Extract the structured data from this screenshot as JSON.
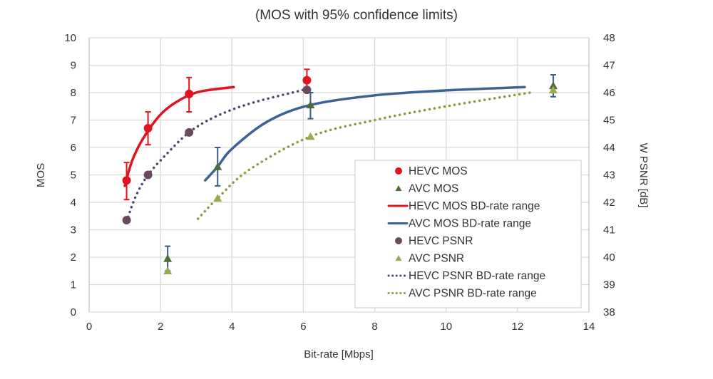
{
  "chart_data": {
    "type": "scatter",
    "title": "(MOS with 95% confidence limits)",
    "xlabel": "Bit-rate [Mbps]",
    "ylabel": "MOS",
    "y2label": "W PSNR [dB]",
    "xlim": [
      0,
      14
    ],
    "ylim": [
      0,
      10
    ],
    "y2lim": [
      38,
      48
    ],
    "xticks": [
      "0",
      "2",
      "4",
      "6",
      "8",
      "10",
      "12",
      "14"
    ],
    "yticks": [
      "0",
      "1",
      "2",
      "3",
      "4",
      "5",
      "6",
      "7",
      "8",
      "9",
      "10"
    ],
    "y2ticks": [
      "38",
      "39",
      "40",
      "41",
      "42",
      "43",
      "44",
      "45",
      "46",
      "47",
      "48"
    ],
    "grid": true,
    "legend_position": "bottom-right",
    "series": [
      {
        "name": "HEVC MOS",
        "kind": "marker",
        "marker": "circle",
        "axis": "left",
        "color": "#e0141e",
        "points": [
          {
            "x": 1.05,
            "y": 4.8,
            "lo": 4.1,
            "hi": 5.45
          },
          {
            "x": 1.65,
            "y": 6.7,
            "lo": 6.1,
            "hi": 7.3
          },
          {
            "x": 2.8,
            "y": 7.95,
            "lo": 7.3,
            "hi": 8.55
          },
          {
            "x": 6.1,
            "y": 8.45,
            "lo": 8.0,
            "hi": 8.85
          }
        ]
      },
      {
        "name": "AVC MOS",
        "kind": "marker",
        "marker": "triangle",
        "axis": "left",
        "color": "#4f6b3a",
        "errcolor": "#3d5a80",
        "points": [
          {
            "x": 2.2,
            "y": 1.95,
            "lo": 1.5,
            "hi": 2.4
          },
          {
            "x": 3.6,
            "y": 5.3,
            "lo": 4.6,
            "hi": 6.0
          },
          {
            "x": 6.2,
            "y": 7.55,
            "lo": 7.05,
            "hi": 8.0
          },
          {
            "x": 13.0,
            "y": 8.25,
            "lo": 7.85,
            "hi": 8.65
          }
        ]
      },
      {
        "name": "HEVC MOS BD-rate range",
        "kind": "line",
        "axis": "left",
        "color": "#e0141e",
        "dash": "solid",
        "points": [
          {
            "x": 1.0,
            "y": 4.6
          },
          {
            "x": 1.2,
            "y": 5.5
          },
          {
            "x": 1.5,
            "y": 6.3
          },
          {
            "x": 2.0,
            "y": 7.2
          },
          {
            "x": 2.5,
            "y": 7.7
          },
          {
            "x": 3.0,
            "y": 8.0
          },
          {
            "x": 3.5,
            "y": 8.12
          },
          {
            "x": 4.05,
            "y": 8.2
          }
        ]
      },
      {
        "name": "AVC MOS BD-rate range",
        "kind": "line",
        "axis": "left",
        "color": "#3d6391",
        "dash": "solid",
        "points": [
          {
            "x": 3.25,
            "y": 4.8
          },
          {
            "x": 3.6,
            "y": 5.3
          },
          {
            "x": 4.0,
            "y": 5.95
          },
          {
            "x": 5.0,
            "y": 6.95
          },
          {
            "x": 6.2,
            "y": 7.55
          },
          {
            "x": 8.0,
            "y": 7.9
          },
          {
            "x": 10.0,
            "y": 8.08
          },
          {
            "x": 12.2,
            "y": 8.2
          }
        ]
      },
      {
        "name": "HEVC PSNR",
        "kind": "marker",
        "marker": "circle",
        "axis": "right",
        "color": "#6b4a5e",
        "points": [
          {
            "x": 1.05,
            "y": 41.35
          },
          {
            "x": 1.65,
            "y": 43.0
          },
          {
            "x": 2.8,
            "y": 44.55
          },
          {
            "x": 6.1,
            "y": 46.1
          }
        ]
      },
      {
        "name": "AVC PSNR",
        "kind": "marker",
        "marker": "triangle",
        "axis": "right",
        "color": "#9aaa4e",
        "points": [
          {
            "x": 2.2,
            "y": 39.5
          },
          {
            "x": 3.6,
            "y": 42.15
          },
          {
            "x": 6.2,
            "y": 44.4
          },
          {
            "x": 13.0,
            "y": 46.1
          }
        ]
      },
      {
        "name": "HEVC PSNR BD-rate range",
        "kind": "line",
        "axis": "right",
        "color": "#4a4a6e",
        "dash": "dotted",
        "points": [
          {
            "x": 1.05,
            "y": 41.3
          },
          {
            "x": 1.3,
            "y": 42.2
          },
          {
            "x": 1.65,
            "y": 43.0
          },
          {
            "x": 2.2,
            "y": 43.8
          },
          {
            "x": 2.8,
            "y": 44.55
          },
          {
            "x": 3.5,
            "y": 45.1
          },
          {
            "x": 4.5,
            "y": 45.6
          },
          {
            "x": 6.0,
            "y": 46.1
          }
        ]
      },
      {
        "name": "AVC PSNR BD-rate range",
        "kind": "line",
        "axis": "right",
        "color": "#8a9a3e",
        "dash": "dotted",
        "points": [
          {
            "x": 3.05,
            "y": 41.4
          },
          {
            "x": 3.6,
            "y": 42.15
          },
          {
            "x": 4.5,
            "y": 43.2
          },
          {
            "x": 6.2,
            "y": 44.4
          },
          {
            "x": 8.0,
            "y": 45.0
          },
          {
            "x": 10.0,
            "y": 45.5
          },
          {
            "x": 12.35,
            "y": 46.0
          }
        ]
      }
    ]
  }
}
